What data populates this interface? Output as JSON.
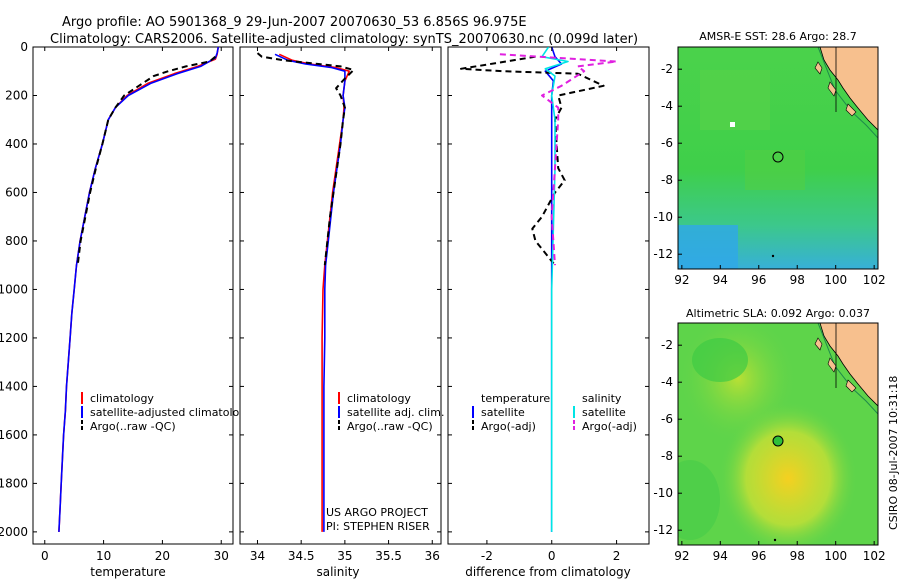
{
  "header": {
    "line1": "Argo profile: AO 5901368_9 29-Jun-2007 20070630_53 6.856S 96.975E",
    "line2": "Climatology: CARS2006. Satellite-adjusted climatology: synTS_20070630.nc (0.099d later)"
  },
  "footer_stamp": "CSIRO 08-Jul-2007 10:31:18",
  "colors": {
    "climatology": "#ff0000",
    "satellite": "#0000ff",
    "argo": "#000000",
    "sal_satellite": "#00e5e5",
    "sal_argo": "#e020e0",
    "land": "#f7c08e",
    "bathy": "#1f8a4a"
  },
  "chart_data": [
    {
      "id": "temperature",
      "type": "line",
      "xlabel": "temperature",
      "ylabel": "",
      "xlim": [
        -2,
        32
      ],
      "ylim": [
        2050,
        0
      ],
      "xticks": [
        0,
        10,
        20,
        30
      ],
      "yticks": [
        0,
        200,
        400,
        600,
        800,
        1000,
        1200,
        1400,
        1600,
        1800,
        2000
      ],
      "legend": [
        "climatology",
        "satellite-adjusted climatology",
        "Argo(..raw -QC)"
      ],
      "series": [
        {
          "name": "climatology",
          "color": "#ff0000",
          "dash": "",
          "points": [
            [
              29.5,
              0
            ],
            [
              29.3,
              30
            ],
            [
              29.0,
              50
            ],
            [
              26.0,
              80
            ],
            [
              22.0,
              110
            ],
            [
              17.5,
              150
            ],
            [
              14.0,
              200
            ],
            [
              12.0,
              250
            ],
            [
              10.8,
              300
            ],
            [
              9.8,
              400
            ],
            [
              8.6,
              500
            ],
            [
              7.6,
              600
            ],
            [
              6.8,
              700
            ],
            [
              6.0,
              800
            ],
            [
              5.4,
              900
            ],
            [
              5.0,
              1000
            ],
            [
              4.6,
              1100
            ],
            [
              4.3,
              1200
            ],
            [
              4.0,
              1300
            ],
            [
              3.7,
              1400
            ],
            [
              3.5,
              1500
            ],
            [
              3.2,
              1600
            ],
            [
              3.0,
              1700
            ],
            [
              2.8,
              1800
            ],
            [
              2.6,
              1900
            ],
            [
              2.4,
              2000
            ]
          ]
        },
        {
          "name": "satellite-adjusted climatology",
          "color": "#0000ff",
          "dash": "",
          "points": [
            [
              29.5,
              0
            ],
            [
              29.3,
              25
            ],
            [
              29.0,
              45
            ],
            [
              26.5,
              80
            ],
            [
              22.5,
              110
            ],
            [
              18.0,
              150
            ],
            [
              14.2,
              200
            ],
            [
              12.0,
              250
            ],
            [
              10.8,
              300
            ],
            [
              9.8,
              400
            ],
            [
              8.6,
              500
            ],
            [
              7.6,
              600
            ],
            [
              6.8,
              700
            ],
            [
              6.0,
              800
            ],
            [
              5.4,
              900
            ],
            [
              5.0,
              1000
            ],
            [
              4.6,
              1100
            ],
            [
              4.3,
              1200
            ],
            [
              4.0,
              1300
            ],
            [
              3.7,
              1400
            ],
            [
              3.5,
              1500
            ],
            [
              3.2,
              1600
            ],
            [
              3.0,
              1700
            ],
            [
              2.8,
              1800
            ],
            [
              2.6,
              1900
            ],
            [
              2.4,
              2000
            ]
          ]
        },
        {
          "name": "Argo(..raw -QC)",
          "color": "#000000",
          "dash": "6,4",
          "points": [
            [
              29.0,
              40
            ],
            [
              28.0,
              60
            ],
            [
              24.0,
              80
            ],
            [
              21.0,
              100
            ],
            [
              18.5,
              120
            ],
            [
              16.0,
              160
            ],
            [
              13.5,
              200
            ],
            [
              12.0,
              250
            ],
            [
              10.8,
              300
            ],
            [
              9.8,
              400
            ],
            [
              8.7,
              500
            ],
            [
              7.7,
              600
            ],
            [
              6.9,
              700
            ],
            [
              6.1,
              800
            ],
            [
              5.6,
              900
            ]
          ]
        }
      ]
    },
    {
      "id": "salinity",
      "type": "line",
      "xlabel": "salinity",
      "ylabel": "",
      "xlim": [
        33.8,
        36.1
      ],
      "ylim": [
        2050,
        0
      ],
      "xticks": [
        34,
        34.5,
        35,
        35.5,
        36
      ],
      "legend": [
        "climatology",
        "satellite adj. clim.",
        "Argo(..raw -QC)"
      ],
      "annotations": [
        "US ARGO PROJECT",
        "PI: STEPHEN RISER"
      ],
      "series": [
        {
          "name": "climatology",
          "color": "#ff0000",
          "dash": "",
          "points": [
            [
              34.25,
              30
            ],
            [
              34.4,
              55
            ],
            [
              34.6,
              70
            ],
            [
              34.9,
              85
            ],
            [
              35.05,
              100
            ],
            [
              35.0,
              140
            ],
            [
              34.98,
              200
            ],
            [
              34.99,
              250
            ],
            [
              34.98,
              300
            ],
            [
              34.94,
              400
            ],
            [
              34.9,
              500
            ],
            [
              34.86,
              600
            ],
            [
              34.83,
              700
            ],
            [
              34.8,
              800
            ],
            [
              34.77,
              900
            ],
            [
              34.75,
              1000
            ],
            [
              34.74,
              1200
            ],
            [
              34.74,
              1400
            ],
            [
              34.74,
              1600
            ],
            [
              34.74,
              1800
            ],
            [
              34.74,
              2000
            ]
          ]
        },
        {
          "name": "satellite adj. clim.",
          "color": "#0000ff",
          "dash": "",
          "points": [
            [
              34.2,
              30
            ],
            [
              34.35,
              55
            ],
            [
              34.55,
              70
            ],
            [
              34.85,
              85
            ],
            [
              35.0,
              100
            ],
            [
              35.0,
              140
            ],
            [
              34.98,
              200
            ],
            [
              35.0,
              250
            ],
            [
              34.98,
              300
            ],
            [
              34.95,
              400
            ],
            [
              34.91,
              500
            ],
            [
              34.87,
              600
            ],
            [
              34.84,
              700
            ],
            [
              34.81,
              800
            ],
            [
              34.78,
              900
            ],
            [
              34.77,
              1000
            ],
            [
              34.77,
              1200
            ],
            [
              34.76,
              1400
            ],
            [
              34.76,
              1600
            ],
            [
              34.76,
              1800
            ],
            [
              34.76,
              2000
            ]
          ]
        },
        {
          "name": "Argo(..raw -QC)",
          "color": "#000000",
          "dash": "6,4",
          "points": [
            [
              34.0,
              25
            ],
            [
              34.05,
              40
            ],
            [
              34.3,
              55
            ],
            [
              34.7,
              70
            ],
            [
              34.95,
              80
            ],
            [
              35.1,
              95
            ],
            [
              35.0,
              130
            ],
            [
              34.9,
              170
            ],
            [
              34.95,
              200
            ],
            [
              35.0,
              250
            ],
            [
              34.98,
              300
            ],
            [
              34.95,
              400
            ],
            [
              34.91,
              500
            ],
            [
              34.87,
              600
            ],
            [
              34.83,
              700
            ],
            [
              34.8,
              800
            ],
            [
              34.77,
              900
            ]
          ]
        }
      ]
    },
    {
      "id": "difference",
      "type": "line",
      "xlabel": "difference from climatology",
      "ylabel": "",
      "xlim": [
        -3.2,
        3.0
      ],
      "ylim": [
        2050,
        0
      ],
      "xticks": [
        -2,
        0,
        2
      ],
      "legend_temperature": {
        "title": "temperature",
        "items": [
          "satellite",
          "Argo(-adj)"
        ]
      },
      "legend_salinity": {
        "title": "salinity",
        "items": [
          "satellite",
          "Argo(-adj)"
        ]
      },
      "series": [
        {
          "name": "temperature satellite",
          "color": "#0000ff",
          "dash": "",
          "points": [
            [
              0,
              0
            ],
            [
              0.1,
              40
            ],
            [
              0.3,
              70
            ],
            [
              -0.2,
              100
            ],
            [
              0.05,
              140
            ],
            [
              0.0,
              200
            ],
            [
              0.0,
              400
            ],
            [
              0.0,
              800
            ],
            [
              0.0,
              1200
            ],
            [
              0.0,
              1600
            ],
            [
              0.0,
              2000
            ]
          ]
        },
        {
          "name": "temperature Argo(-adj)",
          "color": "#000000",
          "dash": "6,4",
          "points": [
            [
              -0.5,
              40
            ],
            [
              -2.8,
              90
            ],
            [
              -1.5,
              100
            ],
            [
              0.8,
              110
            ],
            [
              1.6,
              160
            ],
            [
              0.2,
              200
            ],
            [
              0.3,
              250
            ],
            [
              0.1,
              300
            ],
            [
              0.2,
              500
            ],
            [
              0.4,
              550
            ],
            [
              0.1,
              600
            ],
            [
              -0.3,
              700
            ],
            [
              -0.6,
              750
            ],
            [
              -0.5,
              800
            ],
            [
              -0.2,
              850
            ],
            [
              0.1,
              900
            ]
          ]
        },
        {
          "name": "salinity satellite",
          "color": "#00e5e5",
          "dash": "",
          "points": [
            [
              -0.1,
              0
            ],
            [
              -0.3,
              40
            ],
            [
              0.5,
              60
            ],
            [
              -0.2,
              90
            ],
            [
              0.1,
              120
            ],
            [
              0.0,
              200
            ],
            [
              0.1,
              300
            ],
            [
              0.1,
              500
            ],
            [
              0.0,
              1000
            ],
            [
              0.0,
              1500
            ],
            [
              0.0,
              2000
            ]
          ]
        },
        {
          "name": "salinity Argo(-adj)",
          "color": "#e020e0",
          "dash": "6,4",
          "points": [
            [
              -1.6,
              30
            ],
            [
              2.0,
              60
            ],
            [
              0.8,
              80
            ],
            [
              1.0,
              100
            ],
            [
              0.3,
              160
            ],
            [
              -0.3,
              200
            ],
            [
              0.2,
              250
            ],
            [
              0.2,
              300
            ],
            [
              0.1,
              500
            ],
            [
              0.0,
              700
            ],
            [
              0.1,
              900
            ]
          ]
        }
      ]
    }
  ],
  "maps": [
    {
      "id": "sst-map",
      "title": "AMSR-E SST: 28.6 Argo: 28.7",
      "xticks": [
        92,
        94,
        96,
        98,
        100,
        102
      ],
      "yticks": [
        -2,
        -4,
        -6,
        -8,
        -10,
        -12
      ],
      "xlim": [
        91.8,
        102.2
      ],
      "ylim": [
        -12.8,
        -0.8
      ],
      "argo_position": [
        96.975,
        -6.856
      ]
    },
    {
      "id": "sla-map",
      "title": "Altimetric SLA: 0.092 Argo: 0.037",
      "xticks": [
        92,
        94,
        96,
        98,
        100,
        102
      ],
      "yticks": [
        -2,
        -4,
        -6,
        -8,
        -10,
        -12
      ],
      "xlim": [
        91.8,
        102.2
      ],
      "ylim": [
        -12.8,
        -0.8
      ],
      "argo_position": [
        96.975,
        -6.856
      ]
    }
  ]
}
